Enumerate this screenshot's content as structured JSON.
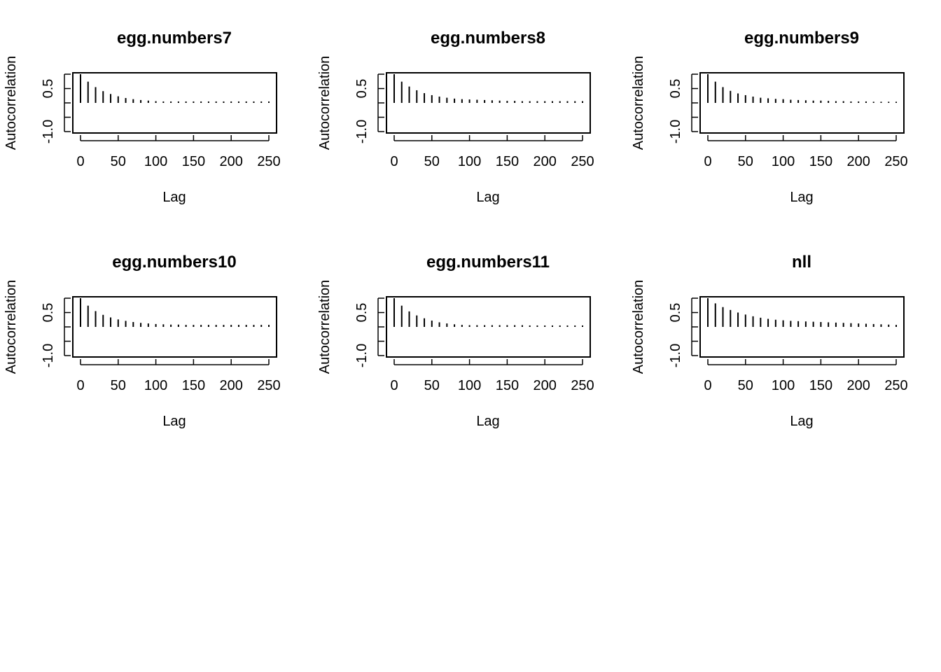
{
  "chart_data": [
    {
      "type": "bar",
      "title": "egg.numbers7",
      "xlabel": "Lag",
      "ylabel": "Autocorrelation",
      "xlim": [
        -10,
        260
      ],
      "ylim": [
        -1.0,
        1.0
      ],
      "xticks": [
        0,
        50,
        100,
        150,
        200,
        250
      ],
      "yticks": [
        -1.0,
        -0.5,
        0.0,
        0.5,
        1.0
      ],
      "ytick_labels": [
        "-1.0",
        "",
        "",
        "0.5",
        ""
      ],
      "lags": [
        0,
        10,
        20,
        30,
        40,
        50,
        60,
        70,
        80,
        90,
        100,
        110,
        120,
        130,
        140,
        150,
        160,
        170,
        180,
        190,
        200,
        210,
        220,
        230,
        240,
        250
      ],
      "values": [
        1.0,
        0.74,
        0.55,
        0.41,
        0.31,
        0.23,
        0.17,
        0.13,
        0.1,
        0.08,
        0.06,
        0.05,
        0.05,
        0.05,
        0.05,
        0.05,
        0.05,
        0.05,
        0.05,
        0.05,
        0.05,
        0.05,
        0.05,
        0.05,
        0.05,
        0.05
      ]
    },
    {
      "type": "bar",
      "title": "egg.numbers8",
      "xlabel": "Lag",
      "ylabel": "Autocorrelation",
      "xlim": [
        -10,
        260
      ],
      "ylim": [
        -1.0,
        1.0
      ],
      "xticks": [
        0,
        50,
        100,
        150,
        200,
        250
      ],
      "yticks": [
        -1.0,
        -0.5,
        0.0,
        0.5,
        1.0
      ],
      "ytick_labels": [
        "-1.0",
        "",
        "",
        "0.5",
        ""
      ],
      "lags": [
        0,
        10,
        20,
        30,
        40,
        50,
        60,
        70,
        80,
        90,
        100,
        110,
        120,
        130,
        140,
        150,
        160,
        170,
        180,
        190,
        200,
        210,
        220,
        230,
        240,
        250
      ],
      "values": [
        1.0,
        0.74,
        0.57,
        0.44,
        0.34,
        0.27,
        0.22,
        0.18,
        0.15,
        0.13,
        0.12,
        0.11,
        0.1,
        0.09,
        0.08,
        0.07,
        0.07,
        0.06,
        0.06,
        0.06,
        0.06,
        0.06,
        0.06,
        0.06,
        0.06,
        0.06
      ]
    },
    {
      "type": "bar",
      "title": "egg.numbers9",
      "xlabel": "Lag",
      "ylabel": "Autocorrelation",
      "xlim": [
        -10,
        260
      ],
      "ylim": [
        -1.0,
        1.0
      ],
      "xticks": [
        0,
        50,
        100,
        150,
        200,
        250
      ],
      "yticks": [
        -1.0,
        -0.5,
        0.0,
        0.5,
        1.0
      ],
      "ytick_labels": [
        "-1.0",
        "",
        "",
        "0.5",
        ""
      ],
      "lags": [
        0,
        10,
        20,
        30,
        40,
        50,
        60,
        70,
        80,
        90,
        100,
        110,
        120,
        130,
        140,
        150,
        160,
        170,
        180,
        190,
        200,
        210,
        220,
        230,
        240,
        250
      ],
      "values": [
        1.0,
        0.74,
        0.55,
        0.42,
        0.33,
        0.27,
        0.22,
        0.18,
        0.16,
        0.14,
        0.13,
        0.11,
        0.1,
        0.09,
        0.08,
        0.08,
        0.07,
        0.06,
        0.06,
        0.05,
        0.05,
        0.05,
        0.04,
        0.04,
        0.04,
        0.04
      ]
    },
    {
      "type": "bar",
      "title": "egg.numbers10",
      "xlabel": "Lag",
      "ylabel": "Autocorrelation",
      "xlim": [
        -10,
        260
      ],
      "ylim": [
        -1.0,
        1.0
      ],
      "xticks": [
        0,
        50,
        100,
        150,
        200,
        250
      ],
      "yticks": [
        -1.0,
        -0.5,
        0.0,
        0.5,
        1.0
      ],
      "ytick_labels": [
        "-1.0",
        "",
        "",
        "0.5",
        ""
      ],
      "lags": [
        0,
        10,
        20,
        30,
        40,
        50,
        60,
        70,
        80,
        90,
        100,
        110,
        120,
        130,
        140,
        150,
        160,
        170,
        180,
        190,
        200,
        210,
        220,
        230,
        240,
        250
      ],
      "values": [
        1.0,
        0.74,
        0.55,
        0.42,
        0.33,
        0.26,
        0.21,
        0.17,
        0.14,
        0.12,
        0.1,
        0.09,
        0.08,
        0.08,
        0.07,
        0.07,
        0.07,
        0.07,
        0.07,
        0.07,
        0.07,
        0.07,
        0.07,
        0.07,
        0.07,
        0.07
      ]
    },
    {
      "type": "bar",
      "title": "egg.numbers11",
      "xlabel": "Lag",
      "ylabel": "Autocorrelation",
      "xlim": [
        -10,
        260
      ],
      "ylim": [
        -1.0,
        1.0
      ],
      "xticks": [
        0,
        50,
        100,
        150,
        200,
        250
      ],
      "yticks": [
        -1.0,
        -0.5,
        0.0,
        0.5,
        1.0
      ],
      "ytick_labels": [
        "-1.0",
        "",
        "",
        "0.5",
        ""
      ],
      "lags": [
        0,
        10,
        20,
        30,
        40,
        50,
        60,
        70,
        80,
        90,
        100,
        110,
        120,
        130,
        140,
        150,
        160,
        170,
        180,
        190,
        200,
        210,
        220,
        230,
        240,
        250
      ],
      "values": [
        1.0,
        0.74,
        0.54,
        0.4,
        0.3,
        0.22,
        0.16,
        0.12,
        0.09,
        0.07,
        0.06,
        0.06,
        0.06,
        0.06,
        0.06,
        0.06,
        0.06,
        0.06,
        0.05,
        0.05,
        0.05,
        0.05,
        0.05,
        0.05,
        0.05,
        0.05
      ]
    },
    {
      "type": "bar",
      "title": "nll",
      "xlabel": "Lag",
      "ylabel": "Autocorrelation",
      "xlim": [
        -10,
        260
      ],
      "ylim": [
        -1.0,
        1.0
      ],
      "xticks": [
        0,
        50,
        100,
        150,
        200,
        250
      ],
      "yticks": [
        -1.0,
        -0.5,
        0.0,
        0.5,
        1.0
      ],
      "ytick_labels": [
        "-1.0",
        "",
        "",
        "0.5",
        ""
      ],
      "lags": [
        0,
        10,
        20,
        30,
        40,
        50,
        60,
        70,
        80,
        90,
        100,
        110,
        120,
        130,
        140,
        150,
        160,
        170,
        180,
        190,
        200,
        210,
        220,
        230,
        240,
        250
      ],
      "values": [
        1.0,
        0.82,
        0.69,
        0.59,
        0.5,
        0.43,
        0.37,
        0.32,
        0.28,
        0.25,
        0.23,
        0.21,
        0.2,
        0.19,
        0.18,
        0.17,
        0.16,
        0.15,
        0.14,
        0.13,
        0.12,
        0.11,
        0.1,
        0.09,
        0.08,
        0.07
      ]
    }
  ]
}
